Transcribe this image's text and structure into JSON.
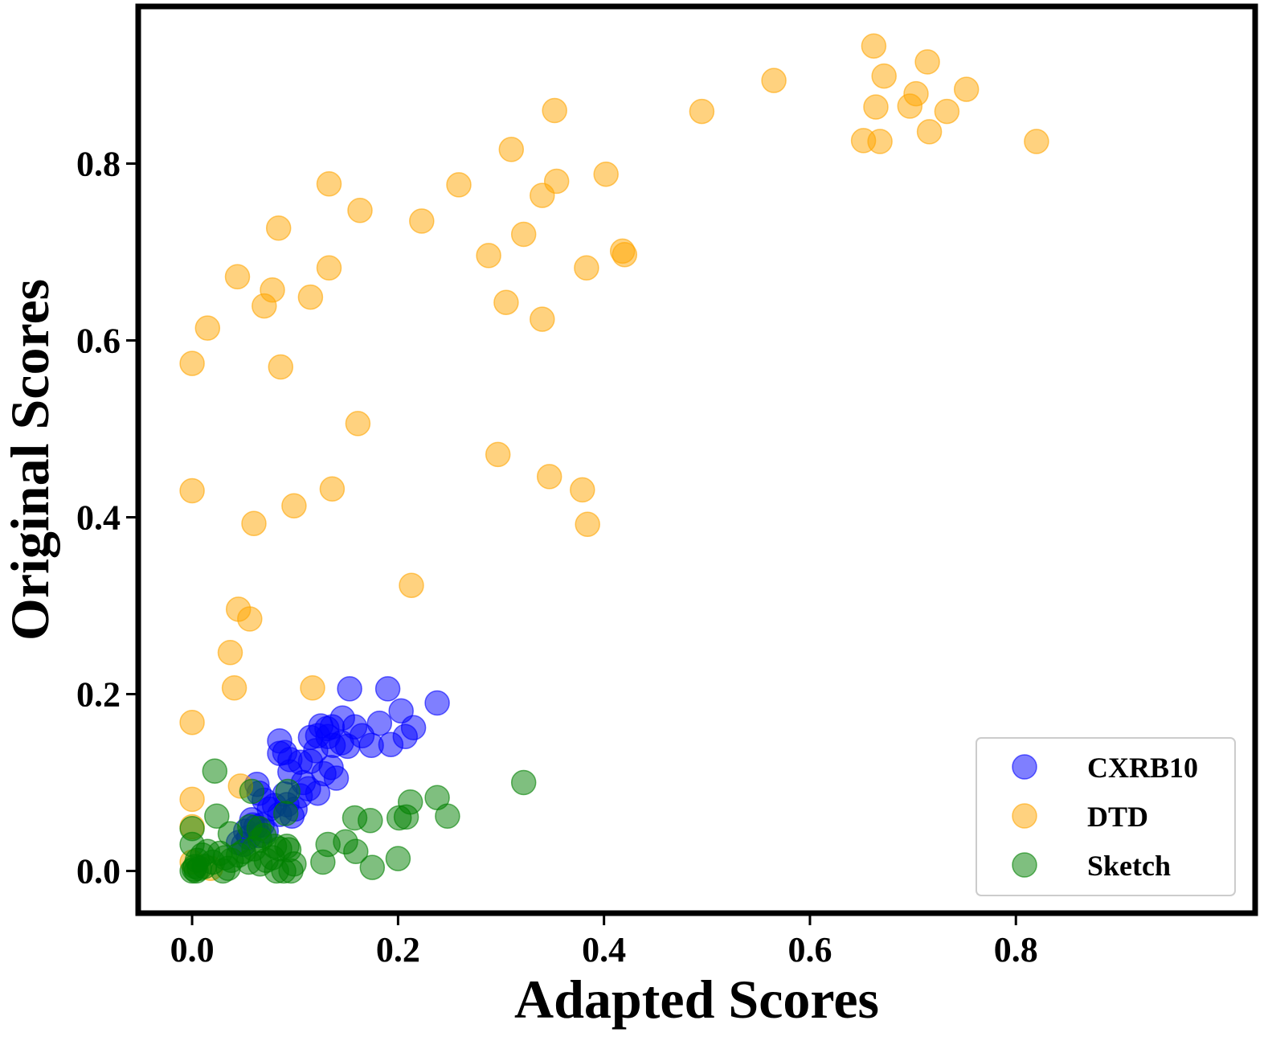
{
  "chart_data": {
    "type": "scatter",
    "xlabel": "Adapted Scores",
    "ylabel": "Original Scores",
    "xlim": [
      -0.05,
      1.03
    ],
    "ylim": [
      -0.045,
      0.975
    ],
    "xticks": [
      0.0,
      0.2,
      0.4,
      0.6,
      0.8
    ],
    "xtick_labels": [
      "0.0",
      "0.2",
      "0.4",
      "0.6",
      "0.8"
    ],
    "yticks": [
      0.0,
      0.2,
      0.4,
      0.6,
      0.8
    ],
    "ytick_labels": [
      "0.0",
      "0.2",
      "0.4",
      "0.6",
      "0.8"
    ],
    "legend_position": "lower-right",
    "series": [
      {
        "name": "CXRB10",
        "color": "#0000ff",
        "points": [
          [
            0.153,
            0.206
          ],
          [
            0.19,
            0.206
          ],
          [
            0.238,
            0.19
          ],
          [
            0.146,
            0.173
          ],
          [
            0.182,
            0.167
          ],
          [
            0.203,
            0.181
          ],
          [
            0.215,
            0.162
          ],
          [
            0.207,
            0.152
          ],
          [
            0.193,
            0.143
          ],
          [
            0.174,
            0.142
          ],
          [
            0.165,
            0.153
          ],
          [
            0.158,
            0.163
          ],
          [
            0.151,
            0.141
          ],
          [
            0.145,
            0.145
          ],
          [
            0.136,
            0.163
          ],
          [
            0.131,
            0.161
          ],
          [
            0.125,
            0.164
          ],
          [
            0.122,
            0.153
          ],
          [
            0.115,
            0.151
          ],
          [
            0.132,
            0.152
          ],
          [
            0.137,
            0.142
          ],
          [
            0.12,
            0.136
          ],
          [
            0.085,
            0.147
          ],
          [
            0.085,
            0.133
          ],
          [
            0.09,
            0.134
          ],
          [
            0.095,
            0.126
          ],
          [
            0.105,
            0.123
          ],
          [
            0.115,
            0.124
          ],
          [
            0.128,
            0.11
          ],
          [
            0.135,
            0.117
          ],
          [
            0.14,
            0.105
          ],
          [
            0.095,
            0.112
          ],
          [
            0.108,
            0.1
          ],
          [
            0.113,
            0.093
          ],
          [
            0.122,
            0.088
          ],
          [
            0.1,
            0.07
          ],
          [
            0.105,
            0.085
          ],
          [
            0.09,
            0.087
          ],
          [
            0.092,
            0.075
          ],
          [
            0.097,
            0.062
          ],
          [
            0.085,
            0.064
          ],
          [
            0.075,
            0.07
          ],
          [
            0.08,
            0.074
          ],
          [
            0.07,
            0.08
          ],
          [
            0.063,
            0.098
          ],
          [
            0.065,
            0.088
          ],
          [
            0.058,
            0.058
          ],
          [
            0.062,
            0.05
          ],
          [
            0.068,
            0.052
          ],
          [
            0.072,
            0.045
          ],
          [
            0.065,
            0.04
          ],
          [
            0.055,
            0.038
          ],
          [
            0.05,
            0.03
          ],
          [
            0.045,
            0.032
          ],
          [
            0.052,
            0.045
          ],
          [
            0.059,
            0.052
          ]
        ]
      },
      {
        "name": "DTD",
        "color": "#ffa500",
        "points": [
          [
            0.662,
            0.933
          ],
          [
            0.714,
            0.915
          ],
          [
            0.672,
            0.899
          ],
          [
            0.565,
            0.894
          ],
          [
            0.752,
            0.884
          ],
          [
            0.703,
            0.879
          ],
          [
            0.697,
            0.865
          ],
          [
            0.664,
            0.864
          ],
          [
            0.733,
            0.859
          ],
          [
            0.495,
            0.859
          ],
          [
            0.352,
            0.86
          ],
          [
            0.716,
            0.836
          ],
          [
            0.652,
            0.826
          ],
          [
            0.668,
            0.825
          ],
          [
            0.82,
            0.825
          ],
          [
            0.31,
            0.816
          ],
          [
            0.402,
            0.788
          ],
          [
            0.354,
            0.78
          ],
          [
            0.133,
            0.777
          ],
          [
            0.259,
            0.776
          ],
          [
            0.34,
            0.764
          ],
          [
            0.163,
            0.747
          ],
          [
            0.223,
            0.735
          ],
          [
            0.084,
            0.727
          ],
          [
            0.322,
            0.72
          ],
          [
            0.418,
            0.701
          ],
          [
            0.42,
            0.697
          ],
          [
            0.288,
            0.696
          ],
          [
            0.383,
            0.682
          ],
          [
            0.133,
            0.682
          ],
          [
            0.044,
            0.672
          ],
          [
            0.078,
            0.657
          ],
          [
            0.115,
            0.649
          ],
          [
            0.07,
            0.639
          ],
          [
            0.305,
            0.643
          ],
          [
            0.34,
            0.624
          ],
          [
            0.015,
            0.614
          ],
          [
            0.0,
            0.574
          ],
          [
            0.086,
            0.57
          ],
          [
            0.161,
            0.506
          ],
          [
            0.297,
            0.471
          ],
          [
            0.347,
            0.446
          ],
          [
            0.0,
            0.43
          ],
          [
            0.136,
            0.432
          ],
          [
            0.379,
            0.431
          ],
          [
            0.099,
            0.413
          ],
          [
            0.06,
            0.393
          ],
          [
            0.384,
            0.392
          ],
          [
            0.213,
            0.323
          ],
          [
            0.045,
            0.296
          ],
          [
            0.056,
            0.285
          ],
          [
            0.037,
            0.247
          ],
          [
            0.041,
            0.207
          ],
          [
            0.117,
            0.207
          ],
          [
            0.0,
            0.168
          ],
          [
            0.047,
            0.096
          ],
          [
            0.0,
            0.081
          ],
          [
            0.0,
            0.05
          ],
          [
            0.0,
            0.01
          ],
          [
            0.018,
            0.003
          ]
        ]
      },
      {
        "name": "Sketch",
        "color": "#008000",
        "points": [
          [
            0.322,
            0.1
          ],
          [
            0.022,
            0.113
          ],
          [
            0.058,
            0.09
          ],
          [
            0.093,
            0.09
          ],
          [
            0.238,
            0.083
          ],
          [
            0.212,
            0.078
          ],
          [
            0.024,
            0.062
          ],
          [
            0.091,
            0.065
          ],
          [
            0.158,
            0.06
          ],
          [
            0.173,
            0.057
          ],
          [
            0.201,
            0.06
          ],
          [
            0.208,
            0.061
          ],
          [
            0.248,
            0.062
          ],
          [
            0.0,
            0.048
          ],
          [
            0.037,
            0.042
          ],
          [
            0.056,
            0.05
          ],
          [
            0.065,
            0.048
          ],
          [
            0.066,
            0.035
          ],
          [
            0.07,
            0.04
          ],
          [
            0.0,
            0.03
          ],
          [
            0.132,
            0.03
          ],
          [
            0.149,
            0.033
          ],
          [
            0.159,
            0.022
          ],
          [
            0.127,
            0.01
          ],
          [
            0.099,
            0.008
          ],
          [
            0.08,
            0.028
          ],
          [
            0.085,
            0.025
          ],
          [
            0.092,
            0.028
          ],
          [
            0.094,
            0.024
          ],
          [
            0.078,
            0.015
          ],
          [
            0.072,
            0.012
          ],
          [
            0.066,
            0.008
          ],
          [
            0.055,
            0.01
          ],
          [
            0.05,
            0.022
          ],
          [
            0.045,
            0.018
          ],
          [
            0.038,
            0.012
          ],
          [
            0.032,
            0.015
          ],
          [
            0.027,
            0.02
          ],
          [
            0.02,
            0.01
          ],
          [
            0.015,
            0.022
          ],
          [
            0.01,
            0.018
          ],
          [
            0.005,
            0.012
          ],
          [
            0.003,
            0.005
          ],
          [
            0.0,
            0.0
          ],
          [
            0.002,
            0.002
          ],
          [
            0.004,
            0.0
          ],
          [
            0.007,
            0.003
          ],
          [
            0.012,
            0.005
          ],
          [
            0.035,
            0.003
          ],
          [
            0.082,
            0.0
          ],
          [
            0.089,
            0.0
          ],
          [
            0.096,
            0.0
          ],
          [
            0.175,
            0.004
          ],
          [
            0.2,
            0.014
          ],
          [
            0.03,
            0.0
          ],
          [
            0.06,
            0.025
          ]
        ]
      }
    ]
  }
}
